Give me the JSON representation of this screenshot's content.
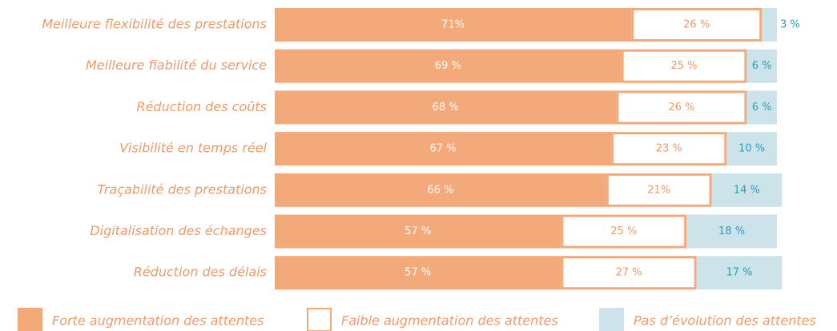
{
  "chart_data": {
    "type": "stacked-bar-horizontal",
    "categories": [
      "Meilleure flexibilité des prestations",
      "Meilleure fiabilité du service",
      "Réduction des coûts",
      "Visibilité en temps réel",
      "Traçabilité des prestations",
      "Digitalisation des échanges",
      "Réduction des délais"
    ],
    "series": [
      {
        "name": "Forte augmentation des attentes",
        "color": "#f4a97a",
        "values": [
          71,
          69,
          68,
          67,
          66,
          57,
          57
        ],
        "value_labels": [
          "71%",
          "69 %",
          "68 %",
          "67 %",
          "66 %",
          "57 %",
          "57 %"
        ]
      },
      {
        "name": "Faible augmentation des attentes",
        "color": "#ffffff",
        "values": [
          26,
          25,
          26,
          23,
          21,
          25,
          27
        ],
        "value_labels": [
          "26 %",
          "25 %",
          "26 %",
          "23 %",
          "21%",
          "25 %",
          "27 %"
        ]
      },
      {
        "name": "Pas d’évolution des attentes",
        "color": "#cde3ea",
        "values": [
          3,
          6,
          6,
          10,
          14,
          18,
          17
        ],
        "value_labels": [
          "3 %",
          "6 %",
          "6 %",
          "10 %",
          "14 %",
          "18 %",
          "17 %"
        ]
      }
    ]
  }
}
